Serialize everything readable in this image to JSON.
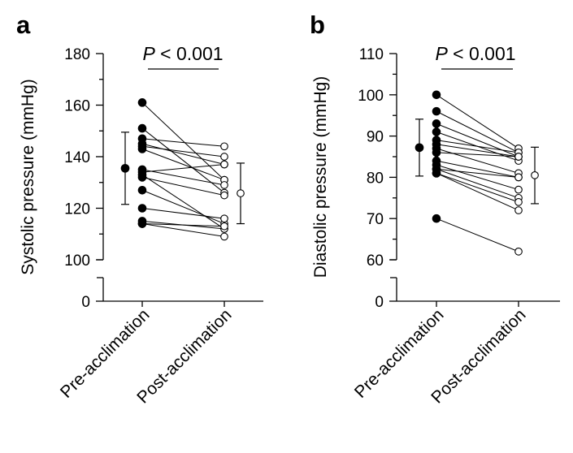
{
  "chart_data": [
    {
      "panel": "a",
      "type": "scatter",
      "ylabel": "Systolic pressure (mmHg)",
      "categories": [
        "Pre-acclimation",
        "Post-acclimation"
      ],
      "yticks": [
        0,
        100,
        120,
        140,
        160,
        180
      ],
      "axis_break": "between 0 and 100",
      "ylim": [
        100,
        180
      ],
      "annotation": {
        "p_italic": "P",
        "p_rest": " < 0.001"
      },
      "paired": [
        [
          161,
          131
        ],
        [
          151,
          126
        ],
        [
          147,
          144
        ],
        [
          145,
          137
        ],
        [
          144,
          140
        ],
        [
          143,
          131
        ],
        [
          135,
          129
        ],
        [
          134,
          137
        ],
        [
          133,
          112
        ],
        [
          132,
          125
        ],
        [
          127,
          114
        ],
        [
          120,
          116
        ],
        [
          115,
          112
        ],
        [
          114,
          113
        ],
        [
          114,
          109
        ]
      ],
      "summary": {
        "pre": {
          "mean": 135.5,
          "low": 121.5,
          "high": 149.5,
          "marker": "filled"
        },
        "post": {
          "mean": 125.8,
          "low": 114,
          "high": 137.5,
          "marker": "open"
        }
      }
    },
    {
      "panel": "b",
      "type": "scatter",
      "ylabel": "Diastolic pressure (mmHg)",
      "categories": [
        "Pre-acclimation",
        "Post-acclimation"
      ],
      "yticks": [
        0,
        60,
        70,
        80,
        90,
        100,
        110
      ],
      "axis_break": "between 0 and 60",
      "ylim": [
        60,
        110
      ],
      "annotation": {
        "p_italic": "P",
        "p_rest": " < 0.001"
      },
      "paired": [
        [
          100,
          87
        ],
        [
          96,
          86
        ],
        [
          93,
          85
        ],
        [
          91,
          84
        ],
        [
          89,
          86
        ],
        [
          88,
          85
        ],
        [
          87,
          81
        ],
        [
          86,
          85
        ],
        [
          84,
          80
        ],
        [
          83,
          77
        ],
        [
          82,
          80
        ],
        [
          82,
          75
        ],
        [
          81,
          74
        ],
        [
          81,
          72
        ],
        [
          70,
          62
        ]
      ],
      "summary": {
        "pre": {
          "mean": 87.2,
          "low": 80.3,
          "high": 94.1,
          "marker": "filled"
        },
        "post": {
          "mean": 80.5,
          "low": 73.6,
          "high": 87.3,
          "marker": "open"
        }
      }
    }
  ]
}
